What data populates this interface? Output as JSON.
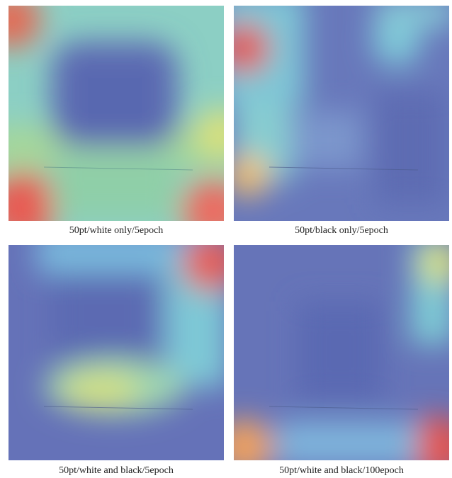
{
  "panels": [
    {
      "caption": "50pt/white only/5epoch"
    },
    {
      "caption": "50pt/black only/5epoch"
    },
    {
      "caption": "50pt/white and black/5epoch"
    },
    {
      "caption": "50pt/white and black/100epoch"
    }
  ]
}
